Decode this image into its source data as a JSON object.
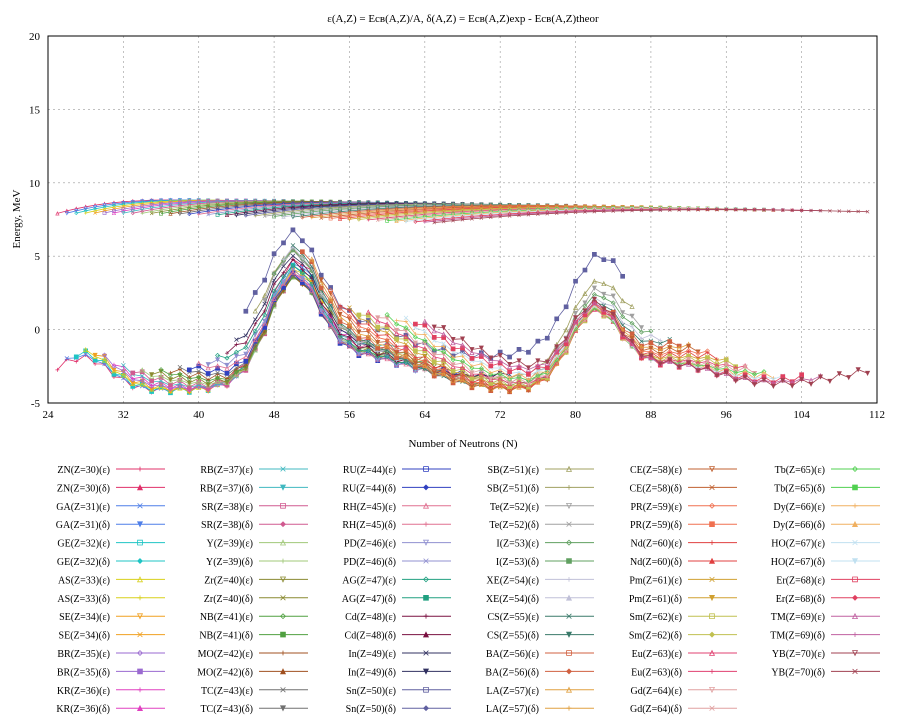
{
  "chart_data": {
    "type": "line",
    "title": "ε(A,Z) = Eсв(A,Z)/A, δ(A,Z) = Eсв(A,Z)exp - Eсв(A,Z)theor",
    "xlabel": "Number of Neutrons (N)",
    "ylabel": "Energy, MeV",
    "xlim": [
      24,
      112
    ],
    "ylim": [
      -5,
      20
    ],
    "xticks": [
      24,
      32,
      40,
      48,
      56,
      64,
      72,
      80,
      88,
      96,
      104,
      112
    ],
    "yticks": [
      -5,
      0,
      5,
      10,
      15,
      20
    ],
    "grid": true,
    "legend_position": "bottom",
    "elements": [
      {
        "sym": "ZN",
        "Z": 30,
        "N0": 25,
        "N1": 52,
        "c": "#e0306a"
      },
      {
        "sym": "GA",
        "Z": 31,
        "N0": 26,
        "N1": 53,
        "c": "#4f7fe8"
      },
      {
        "sym": "GE",
        "Z": 32,
        "N0": 27,
        "N1": 54,
        "c": "#1fc4c4"
      },
      {
        "sym": "AS",
        "Z": 33,
        "N0": 28,
        "N1": 55,
        "c": "#d8d01a"
      },
      {
        "sym": "SE",
        "Z": 34,
        "N0": 29,
        "N1": 56,
        "c": "#f0a020"
      },
      {
        "sym": "BR",
        "Z": 35,
        "N0": 30,
        "N1": 57,
        "c": "#9a6ad0"
      },
      {
        "sym": "KR",
        "Z": 36,
        "N0": 31,
        "N1": 58,
        "c": "#e040c0"
      },
      {
        "sym": "RB",
        "Z": 37,
        "N0": 32,
        "N1": 61,
        "c": "#40b8c0"
      },
      {
        "sym": "SR",
        "Z": 38,
        "N0": 33,
        "N1": 62,
        "c": "#d05a90"
      },
      {
        "sym": "Y",
        "Z": 39,
        "N0": 34,
        "N1": 63,
        "c": "#a0c878"
      },
      {
        "sym": "Zr",
        "Z": 40,
        "N0": 35,
        "N1": 64,
        "c": "#8a8a30"
      },
      {
        "sym": "NB",
        "Z": 41,
        "N0": 36,
        "N1": 65,
        "c": "#50a040"
      },
      {
        "sym": "MO",
        "Z": 42,
        "N0": 37,
        "N1": 66,
        "c": "#a05020"
      },
      {
        "sym": "TC",
        "Z": 43,
        "N0": 38,
        "N1": 67,
        "c": "#707070"
      },
      {
        "sym": "RU",
        "Z": 44,
        "N0": 39,
        "N1": 68,
        "c": "#3040c0"
      },
      {
        "sym": "RH",
        "Z": 45,
        "N0": 40,
        "N1": 69,
        "c": "#e07090"
      },
      {
        "sym": "PD",
        "Z": 46,
        "N0": 41,
        "N1": 70,
        "c": "#9090d0"
      },
      {
        "sym": "AG",
        "Z": 47,
        "N0": 42,
        "N1": 71,
        "c": "#20a080"
      },
      {
        "sym": "Cd",
        "Z": 48,
        "N0": 43,
        "N1": 72,
        "c": "#7a1040"
      },
      {
        "sym": "In",
        "Z": 49,
        "N0": 44,
        "N1": 73,
        "c": "#303060"
      },
      {
        "sym": "Sn",
        "Z": 50,
        "N0": 45,
        "N1": 85,
        "c": "#6060a0"
      },
      {
        "sym": "SB",
        "Z": 51,
        "N0": 46,
        "N1": 86,
        "c": "#a0a060"
      },
      {
        "sym": "Te",
        "Z": 52,
        "N0": 47,
        "N1": 87,
        "c": "#a0a0a0"
      },
      {
        "sym": "I",
        "Z": 53,
        "N0": 48,
        "N1": 88,
        "c": "#60a060"
      },
      {
        "sym": "XE",
        "Z": 54,
        "N0": 49,
        "N1": 89,
        "c": "#c0c0d8"
      },
      {
        "sym": "CS",
        "Z": 55,
        "N0": 50,
        "N1": 90,
        "c": "#3a7a6a"
      },
      {
        "sym": "BA",
        "Z": 56,
        "N0": 51,
        "N1": 91,
        "c": "#d06040"
      },
      {
        "sym": "LA",
        "Z": 57,
        "N0": 52,
        "N1": 92,
        "c": "#e0a040"
      },
      {
        "sym": "CE",
        "Z": 58,
        "N0": 53,
        "N1": 93,
        "c": "#c06030"
      },
      {
        "sym": "PR",
        "Z": 59,
        "N0": 54,
        "N1": 94,
        "c": "#f07050"
      },
      {
        "sym": "Nd",
        "Z": 60,
        "N0": 55,
        "N1": 95,
        "c": "#e04040"
      },
      {
        "sym": "Pm",
        "Z": 61,
        "N0": 56,
        "N1": 96,
        "c": "#d0a030"
      },
      {
        "sym": "Sm",
        "Z": 62,
        "N0": 57,
        "N1": 97,
        "c": "#c0c050"
      },
      {
        "sym": "Eu",
        "Z": 63,
        "N0": 58,
        "N1": 98,
        "c": "#e04070"
      },
      {
        "sym": "Gd",
        "Z": 64,
        "N0": 59,
        "N1": 99,
        "c": "#e0a0a0"
      },
      {
        "sym": "Tb",
        "Z": 65,
        "N0": 60,
        "N1": 100,
        "c": "#50d050"
      },
      {
        "sym": "Dy",
        "Z": 66,
        "N0": 61,
        "N1": 101,
        "c": "#f0b060"
      },
      {
        "sym": "HO",
        "Z": 67,
        "N0": 62,
        "N1": 102,
        "c": "#c0e0f0"
      },
      {
        "sym": "Er",
        "Z": 68,
        "N0": 63,
        "N1": 104,
        "c": "#e04060"
      },
      {
        "sym": "TM",
        "Z": 69,
        "N0": 64,
        "N1": 106,
        "c": "#c060a0"
      },
      {
        "sym": "YB",
        "Z": 70,
        "N0": 65,
        "N1": 111,
        "c": "#a04050"
      }
    ],
    "legend": [
      [
        "ZN(Z=30)(ε)",
        "ZN(Z=30)(δ)",
        "GA(Z=31)(ε)",
        "GA(Z=31)(δ)",
        "GE(Z=32)(ε)",
        "GE(Z=32)(δ)",
        "AS(Z=33)(ε)",
        "AS(Z=33)(δ)",
        "SE(Z=34)(ε)",
        "SE(Z=34)(δ)",
        "BR(Z=35)(ε)",
        "BR(Z=35)(δ)",
        "KR(Z=36)(ε)",
        "KR(Z=36)(δ)"
      ],
      [
        "RB(Z=37)(ε)",
        "RB(Z=37)(δ)",
        "SR(Z=38)(ε)",
        "SR(Z=38)(δ)",
        "Y(Z=39)(ε)",
        "Y(Z=39)(δ)",
        "Zr(Z=40)(ε)",
        "Zr(Z=40)(δ)",
        "NB(Z=41)(ε)",
        "NB(Z=41)(δ)",
        "MO(Z=42)(ε)",
        "MO(Z=42)(δ)",
        "TC(Z=43)(ε)",
        "TC(Z=43)(δ)"
      ],
      [
        "RU(Z=44)(ε)",
        "RU(Z=44)(δ)",
        "RH(Z=45)(ε)",
        "RH(Z=45)(δ)",
        "PD(Z=46)(ε)",
        "PD(Z=46)(δ)",
        "AG(Z=47)(ε)",
        "AG(Z=47)(δ)",
        "Cd(Z=48)(ε)",
        "Cd(Z=48)(δ)",
        "In(Z=49)(ε)",
        "In(Z=49)(δ)",
        "Sn(Z=50)(ε)",
        "Sn(Z=50)(δ)"
      ],
      [
        "SB(Z=51)(ε)",
        "SB(Z=51)(δ)",
        "Te(Z=52)(ε)",
        "Te(Z=52)(δ)",
        "I(Z=53)(ε)",
        "I(Z=53)(δ)",
        "XE(Z=54)(ε)",
        "XE(Z=54)(δ)",
        "CS(Z=55)(ε)",
        "CS(Z=55)(δ)",
        "BA(Z=56)(ε)",
        "BA(Z=56)(δ)",
        "LA(Z=57)(ε)",
        "LA(Z=57)(δ)"
      ],
      [
        "CE(Z=58)(ε)",
        "CE(Z=58)(δ)",
        "PR(Z=59)(ε)",
        "PR(Z=59)(δ)",
        "Nd(Z=60)(ε)",
        "Nd(Z=60)(δ)",
        "Pm(Z=61)(ε)",
        "Pm(Z=61)(δ)",
        "Sm(Z=62)(ε)",
        "Sm(Z=62)(δ)",
        "Eu(Z=63)(ε)",
        "Eu(Z=63)(δ)",
        "Gd(Z=64)(ε)",
        "Gd(Z=64)(δ)"
      ],
      [
        "Tb(Z=65)(ε)",
        "Tb(Z=65)(δ)",
        "Dy(Z=66)(ε)",
        "Dy(Z=66)(δ)",
        "HO(Z=67)(ε)",
        "HO(Z=67)(δ)",
        "Er(Z=68)(ε)",
        "Er(Z=68)(δ)",
        "TM(Z=69)(ε)",
        "TM(Z=69)(δ)",
        "YB(Z=70)(ε)",
        "YB(Z=70)(δ)"
      ]
    ]
  }
}
